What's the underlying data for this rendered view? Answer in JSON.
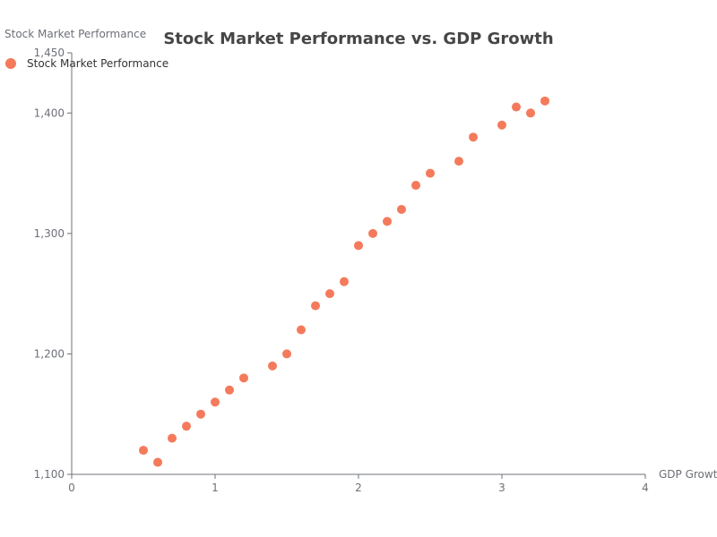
{
  "chart_data": {
    "type": "scatter",
    "title": "Stock Market Performance vs. GDP Growth",
    "xlabel": "GDP Growth",
    "ylabel": "Stock Market Performance",
    "xlim": [
      0,
      4
    ],
    "ylim": [
      1100,
      1450
    ],
    "x_ticks": [
      "0",
      "1",
      "2",
      "3",
      "4"
    ],
    "y_ticks": [
      "1,100",
      "1,200",
      "1,300",
      "1,400",
      "1,450"
    ],
    "grid": false,
    "legend_position": "top-left",
    "series": [
      {
        "name": "Stock Market Performance",
        "color": "#f47a5b",
        "points": [
          [
            0.5,
            1120
          ],
          [
            0.6,
            1110
          ],
          [
            0.7,
            1130
          ],
          [
            0.8,
            1140
          ],
          [
            0.9,
            1150
          ],
          [
            1.0,
            1160
          ],
          [
            1.1,
            1170
          ],
          [
            1.2,
            1180
          ],
          [
            1.4,
            1190
          ],
          [
            1.5,
            1200
          ],
          [
            1.6,
            1220
          ],
          [
            1.7,
            1240
          ],
          [
            1.8,
            1250
          ],
          [
            1.9,
            1260
          ],
          [
            2.0,
            1290
          ],
          [
            2.1,
            1300
          ],
          [
            2.2,
            1310
          ],
          [
            2.3,
            1320
          ],
          [
            2.4,
            1340
          ],
          [
            2.5,
            1350
          ],
          [
            2.7,
            1360
          ],
          [
            2.8,
            1380
          ],
          [
            3.0,
            1390
          ],
          [
            3.1,
            1405
          ],
          [
            3.2,
            1400
          ],
          [
            3.3,
            1410
          ]
        ]
      }
    ]
  }
}
